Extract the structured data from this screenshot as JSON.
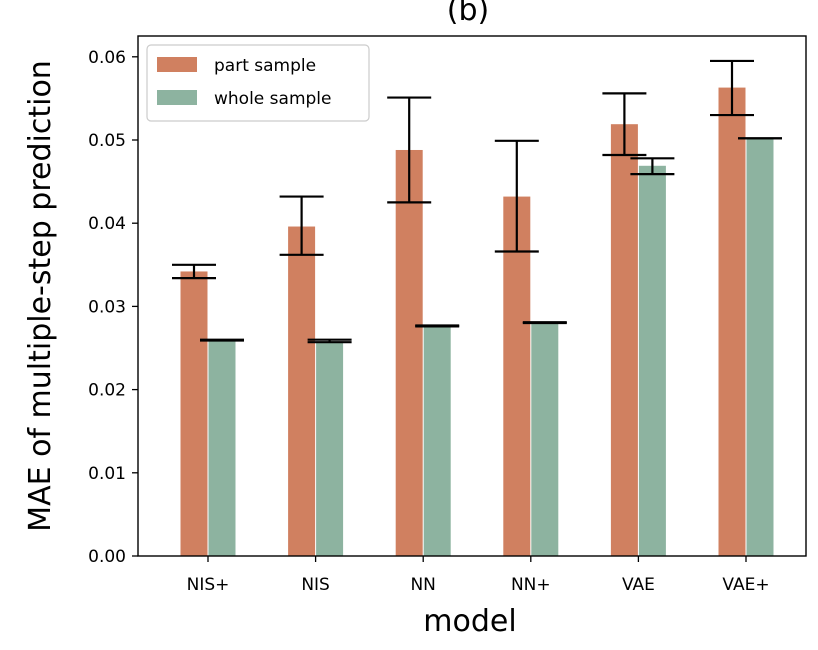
{
  "chart_data": {
    "type": "bar",
    "title": "(b)",
    "xlabel": "model",
    "ylabel": "MAE of multiple-step prediction",
    "categories": [
      "NIS+",
      "NIS",
      "NN",
      "NN+",
      "VAE",
      "VAE+"
    ],
    "ylim": [
      0,
      0.0625
    ],
    "yticks": [
      0.0,
      0.01,
      0.02,
      0.03,
      0.04,
      0.05,
      0.06
    ],
    "ytick_labels": [
      "0.00",
      "0.01",
      "0.02",
      "0.03",
      "0.04",
      "0.05",
      "0.06"
    ],
    "legend_position": "top-left",
    "grid": false,
    "series": [
      {
        "name": "part sample",
        "color": "#d08060",
        "values": [
          0.0342,
          0.0396,
          0.0488,
          0.0432,
          0.0519,
          0.0563
        ],
        "err_low": [
          0.0334,
          0.0362,
          0.0425,
          0.0366,
          0.0482,
          0.053
        ],
        "err_high": [
          0.035,
          0.0432,
          0.0551,
          0.0499,
          0.0556,
          0.0595
        ]
      },
      {
        "name": "whole sample",
        "color": "#8db3a0",
        "values": [
          0.0259,
          0.0258,
          0.0276,
          0.028,
          0.0469,
          0.0502
        ],
        "err_low": [
          0.0259,
          0.0257,
          0.0276,
          0.028,
          0.0459,
          0.0502
        ],
        "err_high": [
          0.026,
          0.026,
          0.0277,
          0.0281,
          0.0478,
          0.0502
        ]
      }
    ]
  }
}
